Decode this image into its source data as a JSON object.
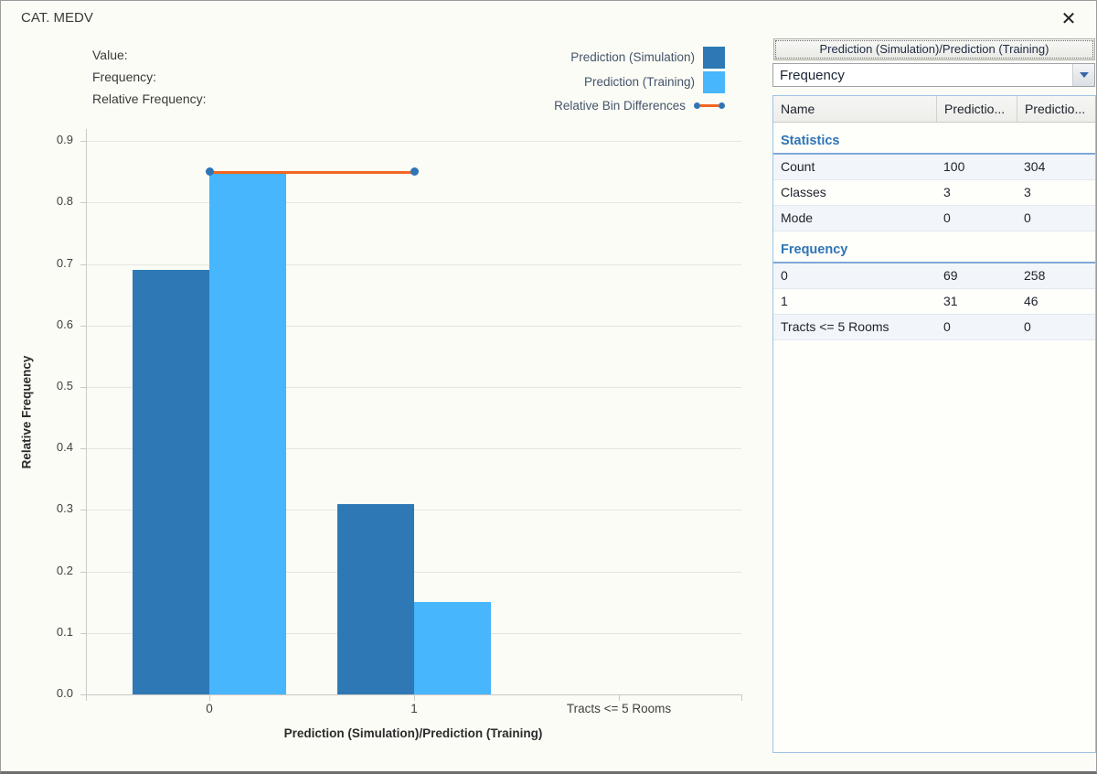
{
  "window": {
    "title": "CAT. MEDV",
    "close_glyph": "✕"
  },
  "hover_labels": {
    "value": "Value:",
    "frequency": "Frequency:",
    "relative_frequency": "Relative Frequency:"
  },
  "legend": {
    "items": [
      {
        "label": "Prediction (Simulation)",
        "marker": "swatch",
        "color": "#2E79B5"
      },
      {
        "label": "Prediction (Training)",
        "marker": "swatch",
        "color": "#47B6FC"
      },
      {
        "label": "Relative Bin Differences",
        "marker": "line-dot",
        "color": "#F2661F"
      }
    ]
  },
  "chart_data": {
    "type": "bar",
    "categories": [
      "0",
      "1",
      "Tracts <= 5 Rooms"
    ],
    "series": [
      {
        "name": "Prediction (Simulation)",
        "type": "bar",
        "color": "#2E79B5",
        "values": [
          0.69,
          0.31,
          0
        ]
      },
      {
        "name": "Prediction (Training)",
        "type": "bar",
        "color": "#47B6FC",
        "values": [
          0.849,
          0.151,
          0
        ]
      },
      {
        "name": "Relative Bin Differences",
        "type": "line",
        "color": "#F2661F",
        "marker_color": "#2E75B6",
        "values": [
          0.85,
          0.85,
          null
        ]
      }
    ],
    "xlabel": "Prediction (Simulation)/Prediction (Training)",
    "ylabel": "Relative Frequency",
    "ylim": [
      0.0,
      0.9
    ],
    "yticks": [
      0.0,
      0.1,
      0.2,
      0.3,
      0.4,
      0.5,
      0.6,
      0.7,
      0.8,
      0.9
    ],
    "grid": true,
    "legend_position": "top-right"
  },
  "panel": {
    "header_button": "Prediction (Simulation)/Prediction (Training)",
    "dropdown": {
      "value": "Frequency"
    },
    "table": {
      "columns": [
        "Name",
        "Predictio...",
        "Predictio..."
      ],
      "sections": [
        {
          "title": "Statistics",
          "rows": [
            [
              "Count",
              "100",
              "304"
            ],
            [
              "Classes",
              "3",
              "3"
            ],
            [
              "Mode",
              "0",
              "0"
            ]
          ]
        },
        {
          "title": "Frequency",
          "rows": [
            [
              "0",
              "69",
              "258"
            ],
            [
              "1",
              "31",
              "46"
            ],
            [
              "Tracts <= 5 Rooms",
              "0",
              "0"
            ]
          ]
        }
      ]
    }
  }
}
